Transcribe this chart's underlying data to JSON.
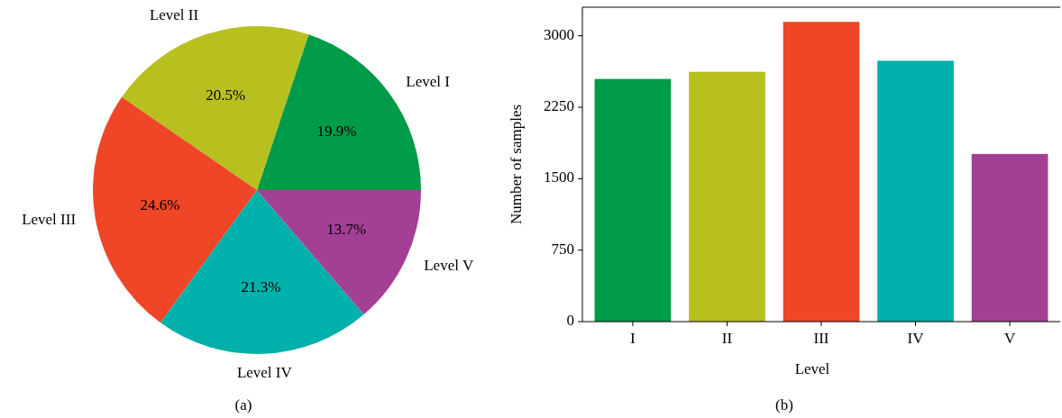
{
  "chart_data": [
    {
      "type": "pie",
      "categories": [
        "Level I",
        "Level II",
        "Level III",
        "Level IV",
        "Level V"
      ],
      "values": [
        19.9,
        20.5,
        24.6,
        21.3,
        13.7
      ],
      "value_labels": [
        "19.9%",
        "20.5%",
        "24.6%",
        "21.3%",
        "13.7%"
      ],
      "colors": [
        "#009b48",
        "#b8c020",
        "#ee4626",
        "#00b0aa",
        "#a43f96"
      ],
      "annotations": [
        "(a)"
      ]
    },
    {
      "type": "bar",
      "categories": [
        "I",
        "II",
        "III",
        "IV",
        "V"
      ],
      "values": [
        2547,
        2622,
        3146,
        2738,
        1760
      ],
      "colors": [
        "#009b48",
        "#b8c020",
        "#ee4626",
        "#00b0aa",
        "#a43f96"
      ],
      "xlabel": "Level",
      "ylabel": "Number of samples",
      "ylim": [
        0,
        3300
      ],
      "yticks": [
        0,
        750,
        1500,
        2250,
        3000
      ],
      "annotations": [
        "(b)"
      ]
    }
  ]
}
